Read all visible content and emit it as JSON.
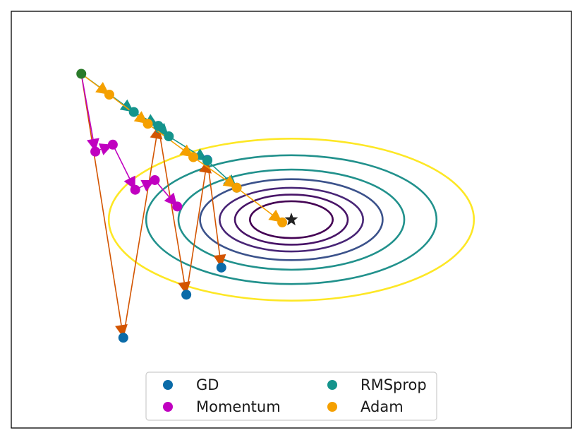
{
  "chart_data": {
    "type": "scatter",
    "title": "",
    "xlabel": "",
    "ylabel": "",
    "xlim": [
      -4,
      4
    ],
    "ylim": [
      -3,
      3
    ],
    "grid": false,
    "axis_ticks": false,
    "legend": {
      "placement": "lower-center",
      "columns": 2
    },
    "contours": {
      "center": [
        0,
        0
      ],
      "x_scale": 1,
      "y_scale": 5,
      "levels": [
        0.35,
        0.65,
        1.05,
        1.7,
        2.6,
        4.3,
        6.8
      ],
      "colors": [
        "#440154",
        "#481467",
        "#482576",
        "#3b528b",
        "#21918c",
        "#21918c",
        "#fde725"
      ]
    },
    "optimum": {
      "x": 0,
      "y": 0,
      "marker": "star",
      "color": "#222222"
    },
    "start": {
      "x": -3,
      "y": 2.1,
      "color": "#2a7a2a"
    },
    "series": [
      {
        "name": "GD",
        "color": "#0a6ba8",
        "arrow_color": "#d35400",
        "x": [
          -3.0,
          -2.4,
          -1.9,
          -1.5,
          -1.2,
          -1.0
        ],
        "y": [
          2.1,
          -1.7,
          1.35,
          -1.08,
          0.86,
          -0.69
        ]
      },
      {
        "name": "Momentum",
        "color": "#c000c0",
        "arrow_color": "#c000c0",
        "x": [
          -3.0,
          -2.8,
          -2.55,
          -2.23,
          -1.95,
          -1.63
        ],
        "y": [
          2.1,
          0.98,
          1.08,
          0.43,
          0.57,
          0.19
        ]
      },
      {
        "name": "RMSprop",
        "color": "#14948c",
        "arrow_color": "#14948c",
        "x": [
          -3.0,
          -2.25,
          -1.9,
          -1.75,
          -1.2,
          -0.78
        ],
        "y": [
          2.1,
          1.55,
          1.35,
          1.2,
          0.85,
          0.46
        ]
      },
      {
        "name": "Adam",
        "color": "#f5a000",
        "arrow_color": "#f5a000",
        "x": [
          -3.0,
          -2.6,
          -2.05,
          -1.4,
          -0.78,
          -0.13
        ],
        "y": [
          2.1,
          1.8,
          1.38,
          0.9,
          0.46,
          -0.04
        ]
      }
    ]
  }
}
